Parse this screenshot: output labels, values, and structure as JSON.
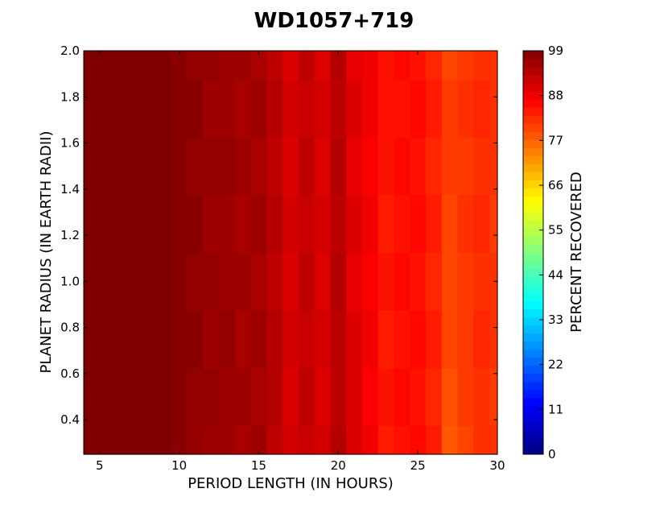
{
  "chart_data": {
    "type": "heatmap",
    "title": "WD1057+719",
    "xlabel": "PERIOD LENGTH (IN HOURS)",
    "ylabel": "PLANET RADIUS (IN EARTH RADII)",
    "colorbar_label": "PERCENT RECOVERED",
    "xlim": [
      4,
      30
    ],
    "ylim": [
      0.25,
      2.0
    ],
    "xticks": [
      "5",
      "10",
      "15",
      "20",
      "25",
      "30"
    ],
    "yticks": [
      "0.4",
      "0.6",
      "0.8",
      "1.0",
      "1.2",
      "1.4",
      "1.6",
      "1.8",
      "2.0"
    ],
    "colorbar_ticks": [
      "0",
      "11",
      "22",
      "33",
      "44",
      "55",
      "66",
      "77",
      "88",
      "99"
    ],
    "clim": [
      0,
      99
    ],
    "colormap": "jet",
    "period_hours": [
      4,
      5,
      6,
      7,
      8,
      9,
      10,
      11,
      12,
      13,
      14,
      15,
      16,
      17,
      18,
      19,
      20,
      21,
      22,
      23,
      24,
      25,
      26,
      27,
      28,
      29,
      30
    ],
    "radius_earth": [
      0.25,
      0.5,
      0.75,
      1.0,
      1.25,
      1.5,
      1.75,
      2.0
    ],
    "percent_recovered": [
      [
        99,
        99,
        99,
        99,
        99,
        99,
        98,
        97,
        96,
        96,
        95,
        96,
        93,
        91,
        92,
        91,
        94,
        90,
        88,
        84,
        85,
        86,
        84,
        78,
        80,
        82,
        82
      ],
      [
        99,
        99,
        99,
        99,
        99,
        99,
        98,
        97,
        97,
        96,
        96,
        95,
        94,
        90,
        93,
        90,
        93,
        90,
        87,
        85,
        86,
        85,
        83,
        79,
        81,
        82,
        81
      ],
      [
        99,
        99,
        99,
        99,
        99,
        99,
        98,
        98,
        96,
        97,
        95,
        96,
        94,
        91,
        92,
        91,
        93,
        90,
        88,
        84,
        85,
        86,
        84,
        80,
        81,
        83,
        82
      ],
      [
        99,
        99,
        99,
        99,
        99,
        99,
        98,
        97,
        97,
        96,
        96,
        95,
        93,
        90,
        93,
        90,
        94,
        89,
        87,
        85,
        86,
        85,
        83,
        80,
        81,
        82,
        82
      ],
      [
        99,
        99,
        99,
        99,
        99,
        99,
        98,
        98,
        96,
        96,
        95,
        96,
        94,
        91,
        92,
        91,
        93,
        90,
        88,
        84,
        85,
        86,
        84,
        80,
        82,
        83,
        81
      ],
      [
        99,
        99,
        99,
        99,
        99,
        99,
        98,
        97,
        97,
        97,
        96,
        95,
        93,
        90,
        93,
        90,
        94,
        89,
        87,
        85,
        86,
        85,
        83,
        81,
        81,
        82,
        82
      ],
      [
        99,
        99,
        99,
        99,
        99,
        99,
        98,
        98,
        96,
        96,
        95,
        96,
        94,
        91,
        92,
        91,
        93,
        90,
        88,
        85,
        85,
        86,
        84,
        81,
        82,
        83,
        82
      ],
      [
        99,
        99,
        99,
        99,
        99,
        99,
        98,
        97,
        97,
        96,
        96,
        95,
        93,
        90,
        93,
        90,
        94,
        89,
        88,
        85,
        86,
        85,
        83,
        80,
        81,
        82,
        82
      ]
    ]
  }
}
